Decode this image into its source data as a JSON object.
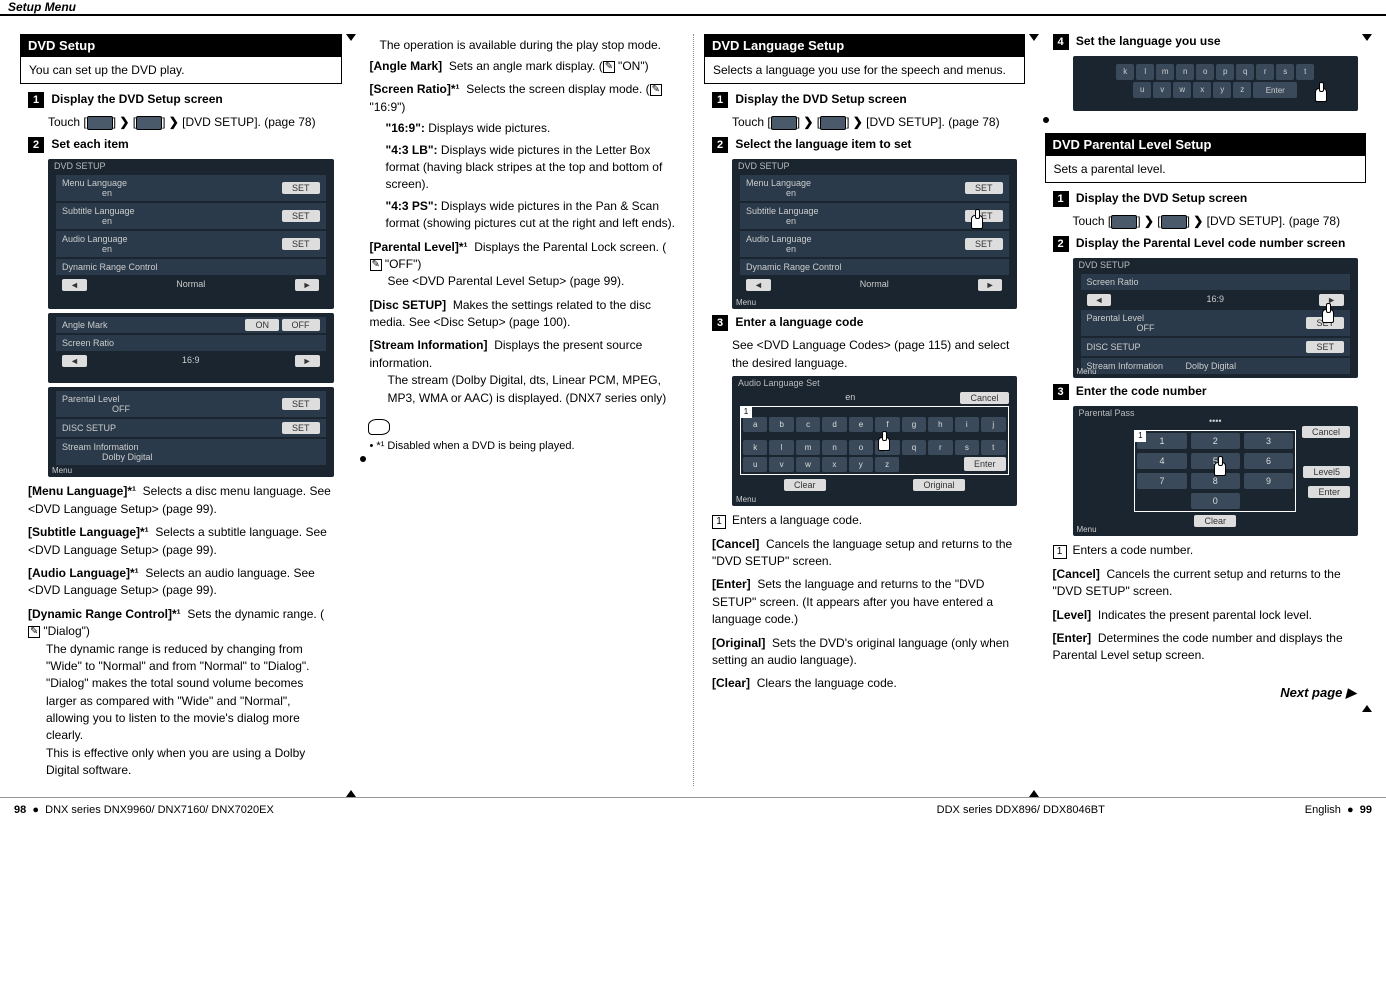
{
  "header": "Setup Menu",
  "col1": {
    "sec_title": "DVD Setup",
    "sec_desc": "You can set up the DVD play.",
    "step1_title": "Display the DVD Setup screen",
    "step1_body_pre": "Touch [",
    "step1_body_mid1": "] ",
    "step1_body_mid2": " [",
    "step1_body_mid3": "] ",
    "step1_body_post": " [DVD SETUP]. (page 78)",
    "step2_title": "Set each item",
    "scr_title": "DVD SETUP",
    "r1": "Menu Language",
    "r1v": "en",
    "set": "SET",
    "r2": "Subtitle Language",
    "r2v": "en",
    "r3": "Audio Language",
    "r3v": "en",
    "r4": "Dynamic Range Control",
    "r4v": "Normal",
    "r5": "Angle Mark",
    "on": "ON",
    "off": "OFF",
    "r6": "Screen Ratio",
    "r6v": "16:9",
    "r7": "Parental Level",
    "r7v": "OFF",
    "r8": "DISC SETUP",
    "r9": "Stream Information",
    "r9v": "Dolby Digital",
    "menu": "Menu",
    "d1_label": "[Menu Language]*¹",
    "d1_body": "Selects a disc menu language. See <DVD Language Setup> (page 99).",
    "d2_label": "[Subtitle Language]*¹",
    "d2_body": "Selects a subtitle language. See <DVD Language Setup> (page 99).",
    "d3_label": "[Audio Language]*¹",
    "d3_body": "Selects an audio language. See <DVD Language Setup> (page 99).",
    "d4_label": "[Dynamic Range Control]*¹",
    "d4_body": "Sets the dynamic range. (",
    "d4_body2": " \"Dialog\")",
    "d4_body3": "The dynamic range is reduced by changing from \"Wide\" to \"Normal\" and from \"Normal\" to \"Dialog\". \"Dialog\" makes the total sound volume becomes larger as compared with \"Wide\" and \"Normal\", allowing you to listen to the movie's dialog more clearly.",
    "d4_body4": "This is effective only when you are using a Dolby Digital software."
  },
  "col2": {
    "cont1": "The operation is available during the play stop mode.",
    "d5_label": "[Angle Mark]",
    "d5_body": "Sets an angle mark display. (",
    "d5_body2": " \"ON\")",
    "d6_label": "[Screen Ratio]*¹",
    "d6_body": "Selects the screen display mode. (",
    "d6_body2": " \"16:9\")",
    "d6_s1l": "\"16:9\":",
    "d6_s1": " Displays wide pictures.",
    "d6_s2l": "\"4:3 LB\":",
    "d6_s2": " Displays wide pictures in the Letter Box format (having black stripes at the top and bottom of screen).",
    "d6_s3l": "\"4:3 PS\":",
    "d6_s3": " Displays wide pictures in the Pan & Scan format (showing pictures cut at the right and left ends).",
    "d7_label": "[Parental Level]*¹",
    "d7_body": "Displays the Parental Lock screen. (",
    "d7_body2": " \"OFF\")",
    "d7_body3": "See <DVD Parental Level Setup> (page 99).",
    "d8_label": "[Disc SETUP]",
    "d8_body": "Makes the settings related to the disc media. See <Disc Setup> (page 100).",
    "d9_label": "[Stream Information]",
    "d9_body": "Displays the present source information.",
    "d9_body2": "The stream (Dolby Digital, dts, Linear PCM, MPEG, MP3, WMA or AAC) is displayed. (DNX7 series only)",
    "note": "• *¹ Disabled when a DVD is being played."
  },
  "col3": {
    "sec_title": "DVD Language Setup",
    "sec_desc": "Selects a language you use for the speech and menus.",
    "step1_title": "Display the DVD Setup screen",
    "step1_post": " [DVD SETUP]. (page 78)",
    "step2_title": "Select the language item to set",
    "step3_title": "Enter a language code",
    "step3_body": "See <DVD Language Codes> (page 115) and select the desired language.",
    "audio_set": "Audio Language Set",
    "en": "en",
    "cancel": "Cancel",
    "enter": "Enter",
    "clear": "Clear",
    "original": "Original",
    "box1": "Enters a language code.",
    "d_cancel": "[Cancel]",
    "d_cancel_b": "Cancels the language setup and returns to the \"DVD SETUP\" screen.",
    "d_enter": "[Enter]",
    "d_enter_b": "Sets the language and returns to the \"DVD SETUP\" screen. (It appears after you have entered a language code.)",
    "d_orig": "[Original]",
    "d_orig_b": "Sets the DVD's original language (only when setting an audio language).",
    "d_clear": "[Clear]",
    "d_clear_b": "Clears the language code."
  },
  "col4": {
    "step4_title": "Set the language you use",
    "sec_title": "DVD Parental Level Setup",
    "sec_desc": "Sets a parental level.",
    "step1_title": "Display the DVD Setup screen",
    "step1_post": " [DVD SETUP]. (page 78)",
    "step2_title": "Display the Parental Level code number screen",
    "scr_title": "DVD SETUP",
    "r1": "Screen Ratio",
    "r1v": "16:9",
    "r2": "Parental Level",
    "r2v": "OFF",
    "r3": "DISC SETUP",
    "r4": "Stream Information",
    "r4v": "Dolby Digital",
    "step3_title": "Enter the code number",
    "pp": "Parental Pass",
    "lv": "Level5",
    "box1": "Enters a code number.",
    "d_cancel": "[Cancel]",
    "d_cancel_b": "Cancels the current setup and returns to the \"DVD SETUP\" screen.",
    "d_level": "[Level]",
    "d_level_b": "Indicates the present parental lock level.",
    "d_enter": "[Enter]",
    "d_enter_b": "Determines the code number and displays the Parental Level setup screen.",
    "next": "Next page ▶"
  },
  "footer": {
    "left_pg": "98",
    "left_txt": "DNX series   DNX9960/ DNX7160/ DNX7020EX",
    "right_txt": "DDX series   DDX896/ DDX8046BT",
    "right_lang": "English",
    "right_pg": "99"
  },
  "keys1": [
    "a",
    "b",
    "c",
    "d",
    "e",
    "f",
    "g",
    "h",
    "i",
    "j"
  ],
  "keys2": [
    "k",
    "l",
    "m",
    "n",
    "o",
    "p",
    "q",
    "r",
    "s",
    "t"
  ],
  "keys3": [
    "u",
    "v",
    "w",
    "x",
    "y",
    "z"
  ],
  "nums": [
    "1",
    "2",
    "3",
    "4",
    "5",
    "6",
    "7",
    "8",
    "9",
    "",
    "0",
    ""
  ]
}
